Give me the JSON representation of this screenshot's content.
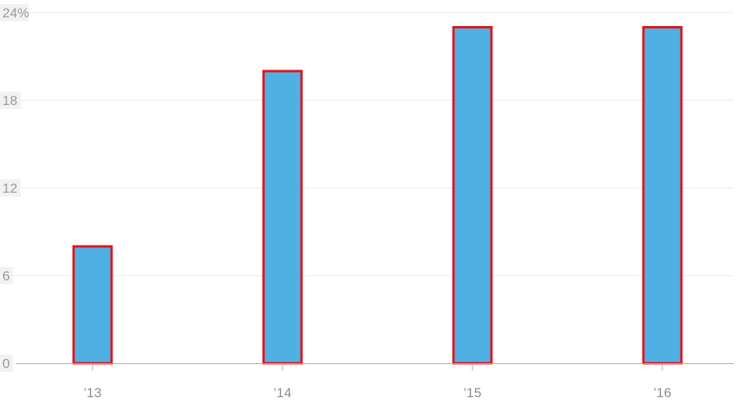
{
  "chart_data": {
    "type": "bar",
    "categories": [
      "’13",
      "’14",
      "’15",
      "’16"
    ],
    "values": [
      8,
      20,
      23,
      23
    ],
    "ylim": [
      0,
      24
    ],
    "yticks": [
      0,
      6,
      12,
      18,
      24
    ],
    "ytick_labels": [
      "0",
      "6",
      "12",
      "18",
      "24%"
    ],
    "grid": true,
    "legend": "none",
    "colors": {
      "bar_fill": "#4fb0e4",
      "bar_outline": "#e0141e",
      "grid": "#e9e9e9",
      "axis": "#aaaaaa",
      "tick_label": "#9a9a9a",
      "label_bg": "#f2f2f2"
    }
  }
}
